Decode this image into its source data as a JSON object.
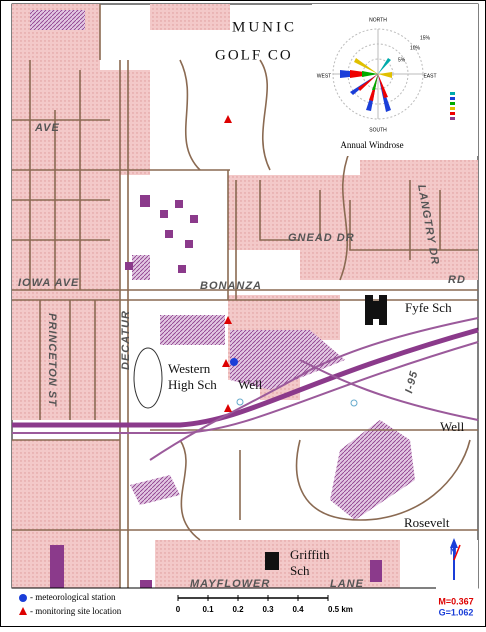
{
  "map": {
    "labels": {
      "munic": "MUNIC",
      "golf": "GOLF CO",
      "ave": "AVE",
      "princeton": "PRINCETON ST",
      "iowa": "IOWA AVE",
      "decatur": "DECATUR",
      "bonanza": "BONANZA",
      "snead": "GNEAD DR",
      "langtry": "LANGTRY DR",
      "rd": "RD",
      "fyfe": "Fyfe Sch",
      "western": "Western",
      "high": "High Sch",
      "well1": "Well",
      "well2": "Well",
      "griffith": "Griffith",
      "sch": "Sch",
      "rosevelt": "Rosevelt",
      "mayflower": "MAYFLOWER",
      "lane": "LANE",
      "freeway": "I-95"
    },
    "windrose": {
      "title": "Annual Windrose",
      "north": "NORTH",
      "south": "SOUTH",
      "west": "WEST",
      "east": "EAST",
      "rings": [
        "15%",
        "10%",
        "5%"
      ]
    },
    "legend": {
      "station": "- meteorological station",
      "site": "- monitoring site location"
    },
    "scale": [
      "0",
      "0.1",
      "0.2",
      "0.3",
      "0.4",
      "0.5 km"
    ],
    "north_arrow": {
      "n": "N",
      "m": "M=0.367",
      "g": "G=1.062"
    }
  }
}
